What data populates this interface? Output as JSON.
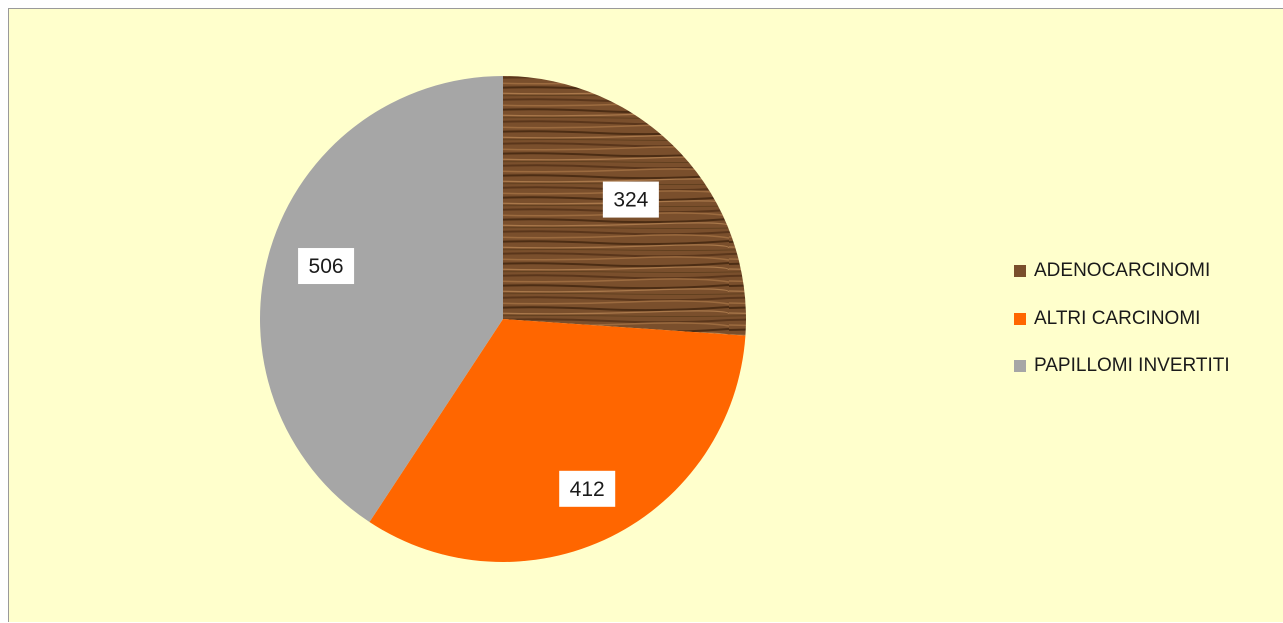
{
  "chart_data": {
    "type": "pie",
    "slices": [
      {
        "label": "ADENOCARCINOMI",
        "value": 324,
        "color": "#7a4f2c"
      },
      {
        "label": "ALTRI CARCINOMI",
        "value": 412,
        "color": "#ff6600"
      },
      {
        "label": "PAPILLOMI INVERTITI",
        "value": 506,
        "color": "#a6a6a6"
      }
    ],
    "data_labels": [
      "324",
      "412",
      "506"
    ],
    "legend_position": "right",
    "start_angle": "top, clockwise"
  },
  "background_color": "#ffffcc",
  "label_box_color": "#ffffff"
}
